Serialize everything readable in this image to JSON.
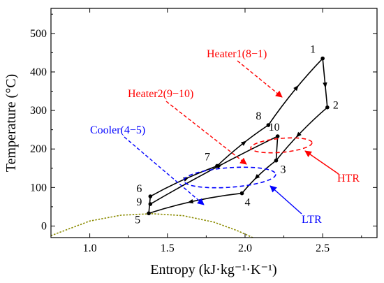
{
  "chart_data": {
    "type": "line",
    "title": "",
    "xlabel": "Entropy (kJ·kg⁻¹·K⁻¹)",
    "ylabel": "Temperature (°C)",
    "xlim": [
      0.75,
      2.85
    ],
    "ylim": [
      -30,
      565
    ],
    "xticks": [
      1.0,
      1.5,
      2.0,
      2.5
    ],
    "xtick_labels": [
      "1.0",
      "1.5",
      "2.0",
      "2.5"
    ],
    "yticks": [
      0,
      100,
      200,
      300,
      400,
      500
    ],
    "ytick_labels": [
      "0",
      "100",
      "200",
      "300",
      "400",
      "500"
    ],
    "grid": false,
    "colors": {
      "cycle": "#000000",
      "heater": "#ff0000",
      "cooler": "#0000ff",
      "saturation": "#8b8b00"
    },
    "state_points": [
      {
        "label": "1",
        "s": 2.5,
        "T": 435
      },
      {
        "label": "2",
        "s": 2.53,
        "T": 308
      },
      {
        "label": "3",
        "s": 2.2,
        "T": 170
      },
      {
        "label": "4",
        "s": 1.98,
        "T": 85
      },
      {
        "label": "5",
        "s": 1.38,
        "T": 33
      },
      {
        "label": "6",
        "s": 1.39,
        "T": 77
      },
      {
        "label": "7",
        "s": 1.82,
        "T": 156
      },
      {
        "label": "8",
        "s": 2.15,
        "T": 262
      },
      {
        "label": "9",
        "s": 1.39,
        "T": 57
      },
      {
        "label": "10",
        "s": 2.21,
        "T": 233
      }
    ],
    "series": [
      {
        "from": "5",
        "to": "6"
      },
      {
        "from": "6",
        "to": "7"
      },
      {
        "from": "7",
        "to": "8"
      },
      {
        "from": "8",
        "to": "1"
      },
      {
        "from": "1",
        "to": "2"
      },
      {
        "from": "2",
        "to": "3"
      },
      {
        "from": "3",
        "to": "4"
      },
      {
        "from": "4",
        "to": "5"
      },
      {
        "from": "9",
        "to": "10"
      },
      {
        "from": "10",
        "to": "3"
      }
    ],
    "saturation_dome": [
      {
        "s": 0.73,
        "T": -28
      },
      {
        "s": 1.0,
        "T": 13
      },
      {
        "s": 1.2,
        "T": 28
      },
      {
        "s": 1.4,
        "T": 32
      },
      {
        "s": 1.6,
        "T": 27
      },
      {
        "s": 1.8,
        "T": 10
      },
      {
        "s": 1.95,
        "T": -12
      },
      {
        "s": 2.05,
        "T": -30
      }
    ],
    "annotations": [
      {
        "text": "Heater1(8−1)",
        "color": "#ff0000"
      },
      {
        "text": "Heater2(9−10)",
        "color": "#ff0000"
      },
      {
        "text": "Cooler(4−5)",
        "color": "#0000ff"
      },
      {
        "text": "HTR",
        "color": "#ff0000"
      },
      {
        "text": "LTR",
        "color": "#0000ff"
      }
    ]
  }
}
